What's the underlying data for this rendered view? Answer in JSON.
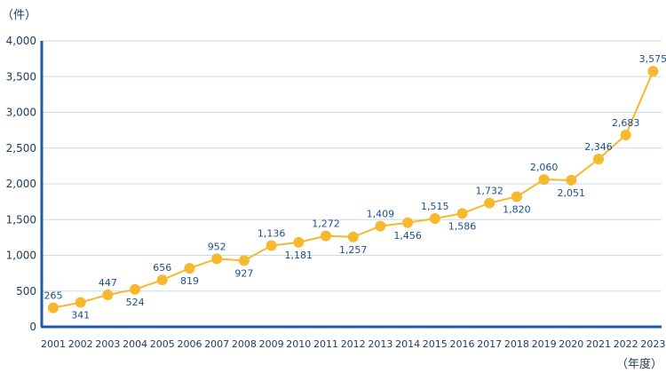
{
  "chart_data": {
    "type": "line",
    "y_unit_label": "（件）",
    "x_unit_label": "（年度）",
    "ylim": [
      0,
      4000
    ],
    "yticks": [
      0,
      500,
      1000,
      1500,
      2000,
      2500,
      3000,
      3500,
      4000
    ],
    "ytick_labels": [
      "0",
      "500",
      "1,000",
      "1,500",
      "2,000",
      "2,500",
      "3,000",
      "3,500",
      "4,000"
    ],
    "grid": true,
    "categories": [
      "2001",
      "2002",
      "2003",
      "2004",
      "2005",
      "2006",
      "2007",
      "2008",
      "2009",
      "2010",
      "2011",
      "2012",
      "2013",
      "2014",
      "2015",
      "2016",
      "2017",
      "2018",
      "2019",
      "2020",
      "2021",
      "2022",
      "2023"
    ],
    "values": [
      265,
      341,
      447,
      524,
      656,
      819,
      952,
      927,
      1136,
      1181,
      1272,
      1257,
      1409,
      1456,
      1515,
      1586,
      1732,
      1820,
      2060,
      2051,
      2346,
      2683,
      3575
    ],
    "value_labels": [
      "265",
      "341",
      "447",
      "524",
      "656",
      "819",
      "952",
      "927",
      "1,136",
      "1,181",
      "1,272",
      "1,257",
      "1,409",
      "1,456",
      "1,515",
      "1,586",
      "1,732",
      "1,820",
      "2,060",
      "2,051",
      "2,346",
      "2,683",
      "3,575"
    ],
    "colors": {
      "line": "#f5b82e",
      "axis": "#1f5aa6",
      "grid": "#c8dbe8",
      "label": "#1f4e8c"
    }
  }
}
